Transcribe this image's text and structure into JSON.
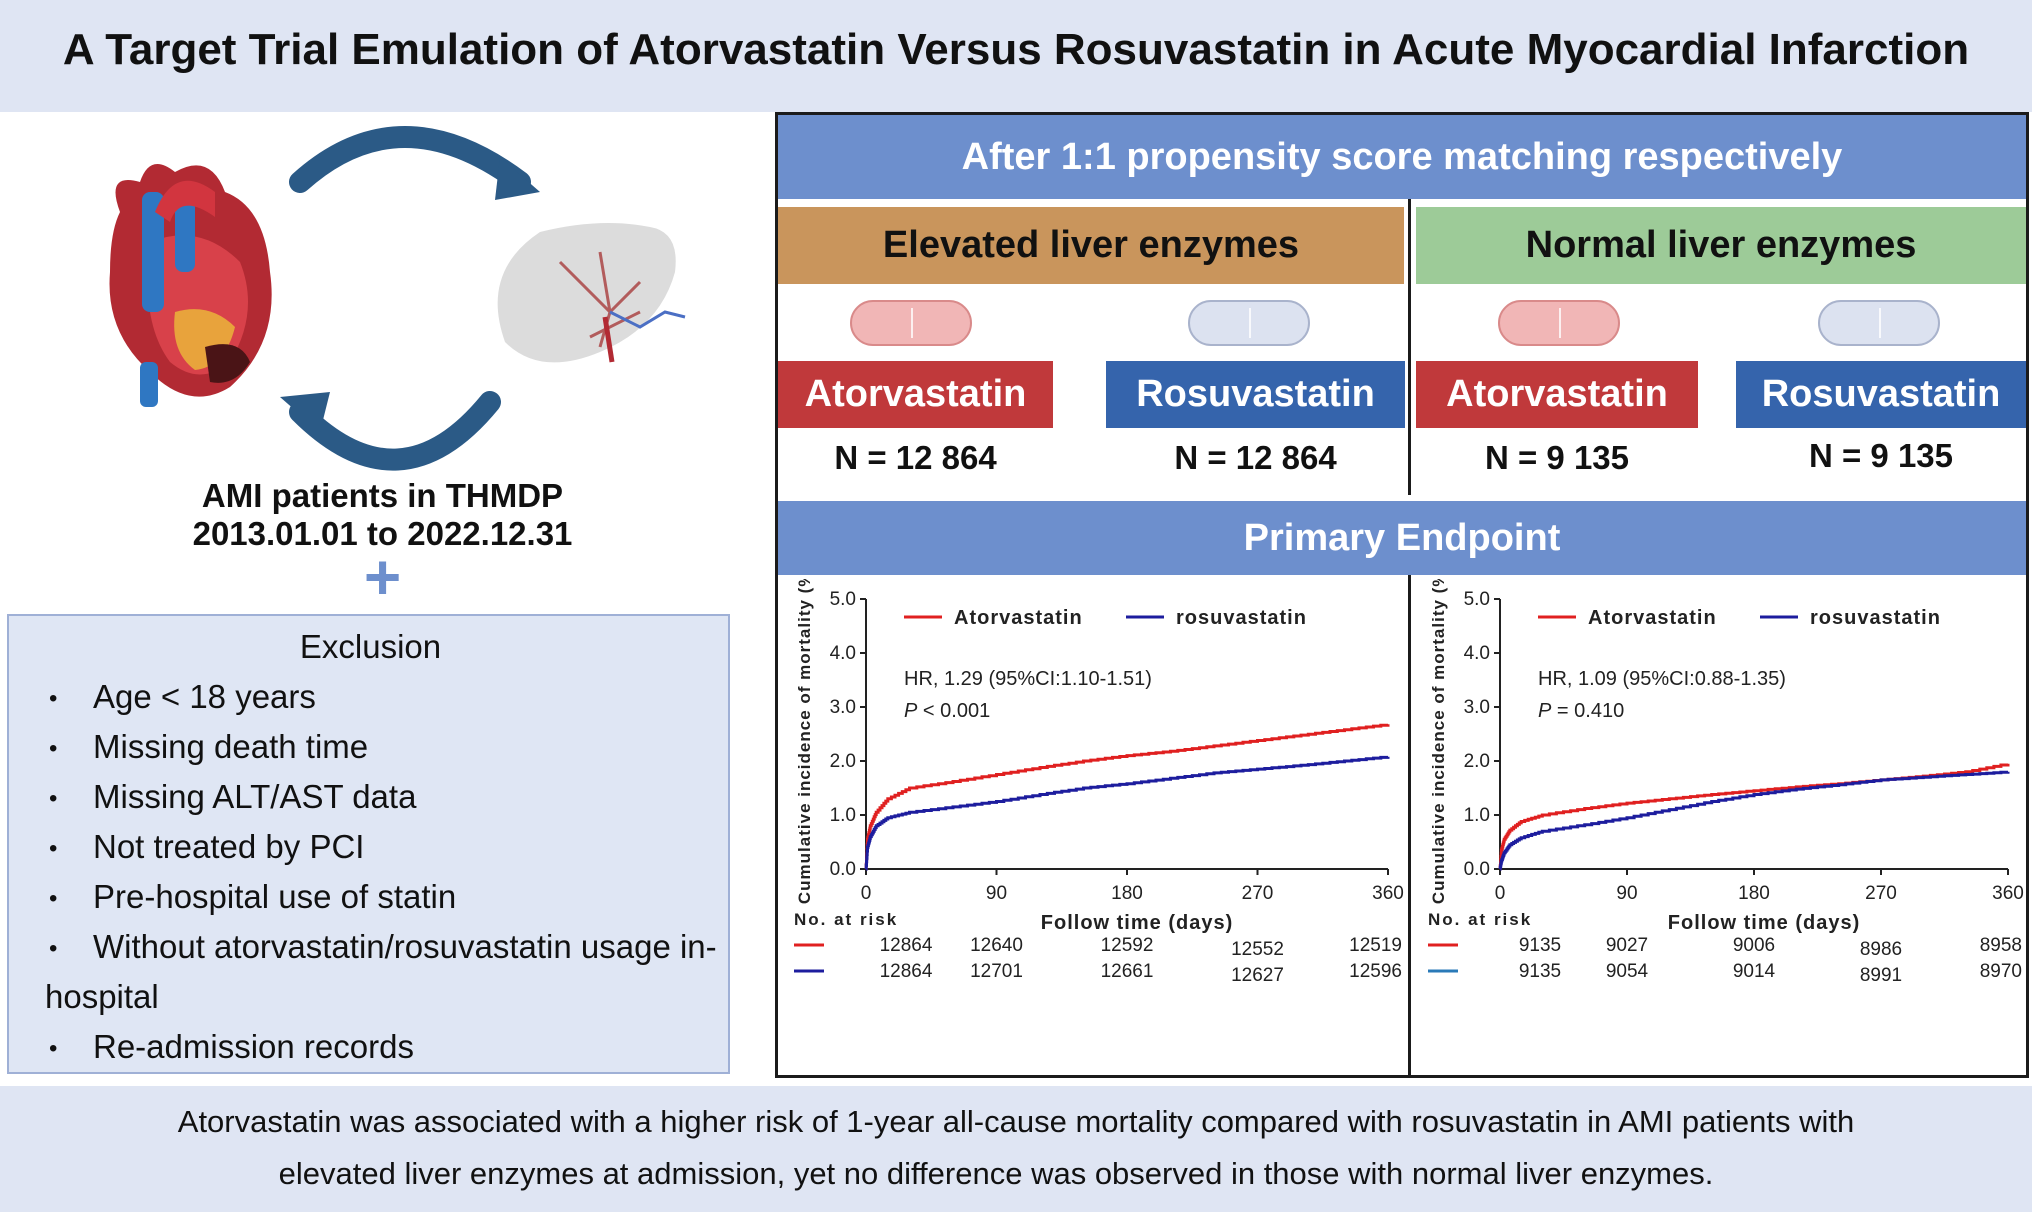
{
  "title": "A Target Trial Emulation of  Atorvastatin Versus Rosuvastatin  in Acute Myocardial Infarction",
  "left": {
    "cohort_line1": "AMI patients in THMDP",
    "cohort_line2": "2013.01.01 to 2022.12.31",
    "plus": "+",
    "exclusion_title": "Exclusion",
    "exclusions": [
      "Age < 18 years",
      "Missing death time",
      "Missing ALT/AST data",
      "Not treated by PCI",
      "Pre-hospital use of statin",
      "Without atorvastatin/rosuvastatin usage in-",
      "Re-admission records"
    ],
    "exclusion_wrap": "hospital",
    "bullet": "•"
  },
  "matching_header": "After 1:1 propensity score matching respectively",
  "groups": [
    {
      "label": "Elevated liver enzymes",
      "color": "#c9955c",
      "arms": [
        {
          "drug": "Atorvastatin",
          "n": "N = 12 864",
          "box_color": "#c0393b",
          "pill_color": "#f1b6b6"
        },
        {
          "drug": "Rosuvastatin",
          "n": "N = 12 864",
          "box_color": "#3564ac",
          "pill_color": "#dce2f0"
        }
      ]
    },
    {
      "label": "Normal liver enzymes",
      "color": "#9dcb98",
      "arms": [
        {
          "drug": "Atorvastatin",
          "n": "N = 9 135",
          "box_color": "#c0393b",
          "pill_color": "#f1b6b6"
        },
        {
          "drug": "Rosuvastatin",
          "n": "N = 9 135",
          "box_color": "#3564ac",
          "pill_color": "#dce2f0"
        }
      ]
    }
  ],
  "endpoint_header": "Primary Endpoint",
  "chart_data": [
    {
      "type": "line",
      "ylabel": "Cumulative incidence of mortality (%)",
      "xlabel": "Follow time (days)",
      "xlim": [
        0,
        360
      ],
      "ylim": [
        0,
        5
      ],
      "xticks": [
        "0",
        "90",
        "180",
        "270",
        "360"
      ],
      "yticks": [
        "0.0",
        "1.0",
        "2.0",
        "3.0",
        "4.0",
        "5.0"
      ],
      "legend": [
        "Atorvastatin",
        "rosuvastatin"
      ],
      "hr_text": "HR, 1.29 (95%CI:1.10-1.51)",
      "p_label": "P",
      "p_text": " < 0.001",
      "series": [
        {
          "name": "Atorvastatin",
          "color": "#e02020",
          "x": [
            0,
            1,
            3,
            7,
            15,
            30,
            60,
            90,
            120,
            150,
            180,
            210,
            240,
            270,
            300,
            330,
            360
          ],
          "y": [
            0,
            0.55,
            0.8,
            1.05,
            1.3,
            1.5,
            1.62,
            1.75,
            1.88,
            2.0,
            2.1,
            2.18,
            2.28,
            2.38,
            2.48,
            2.58,
            2.68
          ]
        },
        {
          "name": "rosuvastatin",
          "color": "#1d1d9e",
          "x": [
            0,
            1,
            3,
            7,
            15,
            30,
            60,
            90,
            120,
            150,
            180,
            210,
            240,
            270,
            300,
            330,
            360
          ],
          "y": [
            0,
            0.4,
            0.6,
            0.8,
            0.95,
            1.05,
            1.15,
            1.25,
            1.38,
            1.5,
            1.58,
            1.68,
            1.78,
            1.85,
            1.92,
            2.0,
            2.08
          ]
        }
      ],
      "risk_label": "No. at risk",
      "risk_table": [
        {
          "color": "#e02020",
          "values": [
            "12864",
            "12640",
            "12592",
            "12552",
            "12519"
          ]
        },
        {
          "color": "#1d1d9e",
          "values": [
            "12864",
            "12701",
            "12661",
            "12627",
            "12596"
          ]
        }
      ]
    },
    {
      "type": "line",
      "ylabel": "Cumulative incidence of mortality (%)",
      "xlabel": "Follow time (days)",
      "xlim": [
        0,
        360
      ],
      "ylim": [
        0,
        5
      ],
      "xticks": [
        "0",
        "90",
        "180",
        "270",
        "360"
      ],
      "yticks": [
        "0.0",
        "1.0",
        "2.0",
        "3.0",
        "4.0",
        "5.0"
      ],
      "legend": [
        "Atorvastatin",
        "rosuvastatin"
      ],
      "hr_text": "HR, 1.09 (95%CI:0.88-1.35)",
      "p_label": "P",
      "p_text": " = 0.410",
      "series": [
        {
          "name": "Atorvastatin",
          "color": "#e02020",
          "x": [
            0,
            1,
            3,
            7,
            15,
            30,
            60,
            90,
            120,
            150,
            180,
            210,
            240,
            270,
            300,
            330,
            360
          ],
          "y": [
            0,
            0.35,
            0.55,
            0.72,
            0.88,
            1.0,
            1.12,
            1.22,
            1.3,
            1.38,
            1.45,
            1.52,
            1.58,
            1.65,
            1.72,
            1.8,
            1.95
          ]
        },
        {
          "name": "rosuvastatin",
          "color": "#1d1d9e",
          "x": [
            0,
            1,
            3,
            7,
            15,
            30,
            60,
            90,
            120,
            150,
            180,
            210,
            240,
            270,
            300,
            330,
            360
          ],
          "y": [
            0,
            0.15,
            0.3,
            0.45,
            0.58,
            0.7,
            0.82,
            0.95,
            1.1,
            1.25,
            1.38,
            1.48,
            1.56,
            1.65,
            1.7,
            1.75,
            1.8
          ]
        }
      ],
      "risk_label": "No. at risk",
      "risk_table": [
        {
          "color": "#e02020",
          "values": [
            "9135",
            "9027",
            "9006",
            "8986",
            "8958"
          ]
        },
        {
          "color": "#2a7ab8",
          "values": [
            "9135",
            "9054",
            "9014",
            "8991",
            "8970"
          ]
        }
      ]
    }
  ],
  "conclusion": {
    "line1": "Atorvastatin was associated with a higher risk of 1-year all-cause mortality compared with rosuvastatin in AMI patients with",
    "line2": "elevated liver enzymes at admission, yet no difference was observed in those with normal liver enzymes."
  }
}
